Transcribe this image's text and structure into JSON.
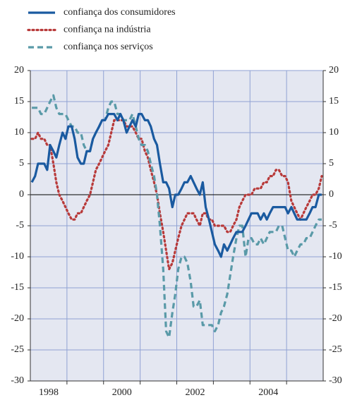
{
  "chart_data": {
    "type": "line",
    "xlim": [
      1998,
      2006
    ],
    "xticks": [
      {
        "value": 1998.5,
        "label": "1998"
      },
      {
        "value": 2000.5,
        "label": "2000"
      },
      {
        "value": 2002.5,
        "label": "2002"
      },
      {
        "value": 2004.5,
        "label": "2004"
      }
    ],
    "xgrid": [
      1999,
      2000,
      2001,
      2002,
      2003,
      2004,
      2005
    ],
    "ylim": [
      -30,
      20
    ],
    "yticks": [
      -30,
      -25,
      -20,
      -15,
      -10,
      -5,
      0,
      5,
      10,
      15,
      20
    ],
    "grid": true,
    "x": [
      1998.04,
      1998.13,
      1998.21,
      1998.29,
      1998.38,
      1998.46,
      1998.54,
      1998.63,
      1998.71,
      1998.79,
      1998.88,
      1998.96,
      1999.04,
      1999.13,
      1999.21,
      1999.29,
      1999.38,
      1999.46,
      1999.54,
      1999.63,
      1999.71,
      1999.79,
      1999.88,
      1999.96,
      2000.04,
      2000.13,
      2000.21,
      2000.29,
      2000.38,
      2000.46,
      2000.54,
      2000.63,
      2000.71,
      2000.79,
      2000.88,
      2000.96,
      2001.04,
      2001.13,
      2001.21,
      2001.29,
      2001.38,
      2001.46,
      2001.54,
      2001.63,
      2001.71,
      2001.79,
      2001.88,
      2001.96,
      2002.04,
      2002.13,
      2002.21,
      2002.29,
      2002.38,
      2002.46,
      2002.54,
      2002.63,
      2002.71,
      2002.79,
      2002.88,
      2002.96,
      2003.04,
      2003.13,
      2003.21,
      2003.29,
      2003.38,
      2003.46,
      2003.54,
      2003.63,
      2003.71,
      2003.79,
      2003.88,
      2003.96,
      2004.04,
      2004.13,
      2004.21,
      2004.29,
      2004.38,
      2004.46,
      2004.54,
      2004.63,
      2004.71,
      2004.79,
      2004.88,
      2004.96,
      2005.04,
      2005.13,
      2005.21,
      2005.29,
      2005.38,
      2005.46,
      2005.54,
      2005.63,
      2005.71,
      2005.79,
      2005.88,
      2005.96
    ],
    "series": [
      {
        "name": "confiança dos consumidores",
        "color": "#1a5aa0",
        "style": "solid",
        "values": [
          2,
          3,
          5,
          5,
          5,
          4,
          8,
          7,
          6,
          8,
          10,
          9,
          11,
          11,
          9,
          6,
          5,
          5,
          7,
          7,
          9,
          10,
          11,
          12,
          12,
          13,
          13,
          13,
          12,
          13,
          12,
          10,
          11,
          12,
          11,
          13,
          13,
          12,
          12,
          11,
          9,
          8,
          5,
          2,
          2,
          1,
          -2,
          0,
          0,
          1,
          2,
          2,
          3,
          2,
          1,
          0,
          2,
          -2,
          -4,
          -6,
          -8,
          -9,
          -10,
          -8,
          -9,
          -8,
          -7,
          -6,
          -6,
          -6,
          -5,
          -4,
          -3,
          -3,
          -3,
          -4,
          -3,
          -4,
          -3,
          -2,
          -2,
          -2,
          -2,
          -2,
          -3,
          -2,
          -3,
          -4,
          -4,
          -4,
          -4,
          -3,
          -2,
          -2,
          0,
          0
        ]
      },
      {
        "name": "confiança na indústria",
        "color": "#b83a3a",
        "style": "dotted",
        "values": [
          9,
          9,
          10,
          9,
          9,
          8,
          8,
          5,
          2,
          0,
          -1,
          -2,
          -3,
          -4,
          -4,
          -3,
          -3,
          -2,
          -1,
          0,
          2,
          4,
          5,
          6,
          7,
          8,
          10,
          12,
          12,
          12,
          12,
          11,
          11,
          11,
          10,
          9,
          9,
          7,
          6,
          4,
          2,
          0,
          -3,
          -6,
          -9,
          -12,
          -11,
          -9,
          -7,
          -5,
          -4,
          -3,
          -3,
          -3,
          -4,
          -5,
          -3,
          -3,
          -4,
          -4,
          -5,
          -5,
          -5,
          -5,
          -6,
          -6,
          -5,
          -4,
          -2,
          -1,
          0,
          0,
          0,
          1,
          1,
          1,
          2,
          2,
          3,
          3,
          4,
          4,
          3,
          3,
          2,
          -1,
          -2,
          -3,
          -4,
          -3,
          -2,
          -1,
          0,
          0,
          1,
          3
        ]
      },
      {
        "name": "confiança nos serviços",
        "color": "#5a9aa8",
        "style": "dashed",
        "values": [
          14,
          14,
          14,
          13,
          13,
          14,
          15,
          16,
          14,
          13,
          13,
          13,
          12,
          11,
          11,
          10,
          10,
          8,
          7,
          7,
          9,
          10,
          11,
          12,
          12,
          14,
          15,
          15,
          13,
          13,
          12,
          12,
          12,
          13,
          11,
          9,
          8,
          8,
          7,
          5,
          3,
          0,
          -5,
          -12,
          -22,
          -23,
          -19,
          -16,
          -12,
          -10,
          -10,
          -11,
          -14,
          -18,
          -18,
          -17,
          -21,
          -21,
          -21,
          -21,
          -22,
          -21,
          -19,
          -18,
          -16,
          -13,
          -10,
          -7,
          -5,
          -5,
          -10,
          -7,
          -7,
          -8,
          -8,
          -7,
          -8,
          -7,
          -6,
          -6,
          -6,
          -5,
          -5,
          -7,
          -9,
          -9,
          -10,
          -9,
          -8,
          -8,
          -7,
          -7,
          -6,
          -5,
          -4,
          -4
        ]
      }
    ]
  }
}
